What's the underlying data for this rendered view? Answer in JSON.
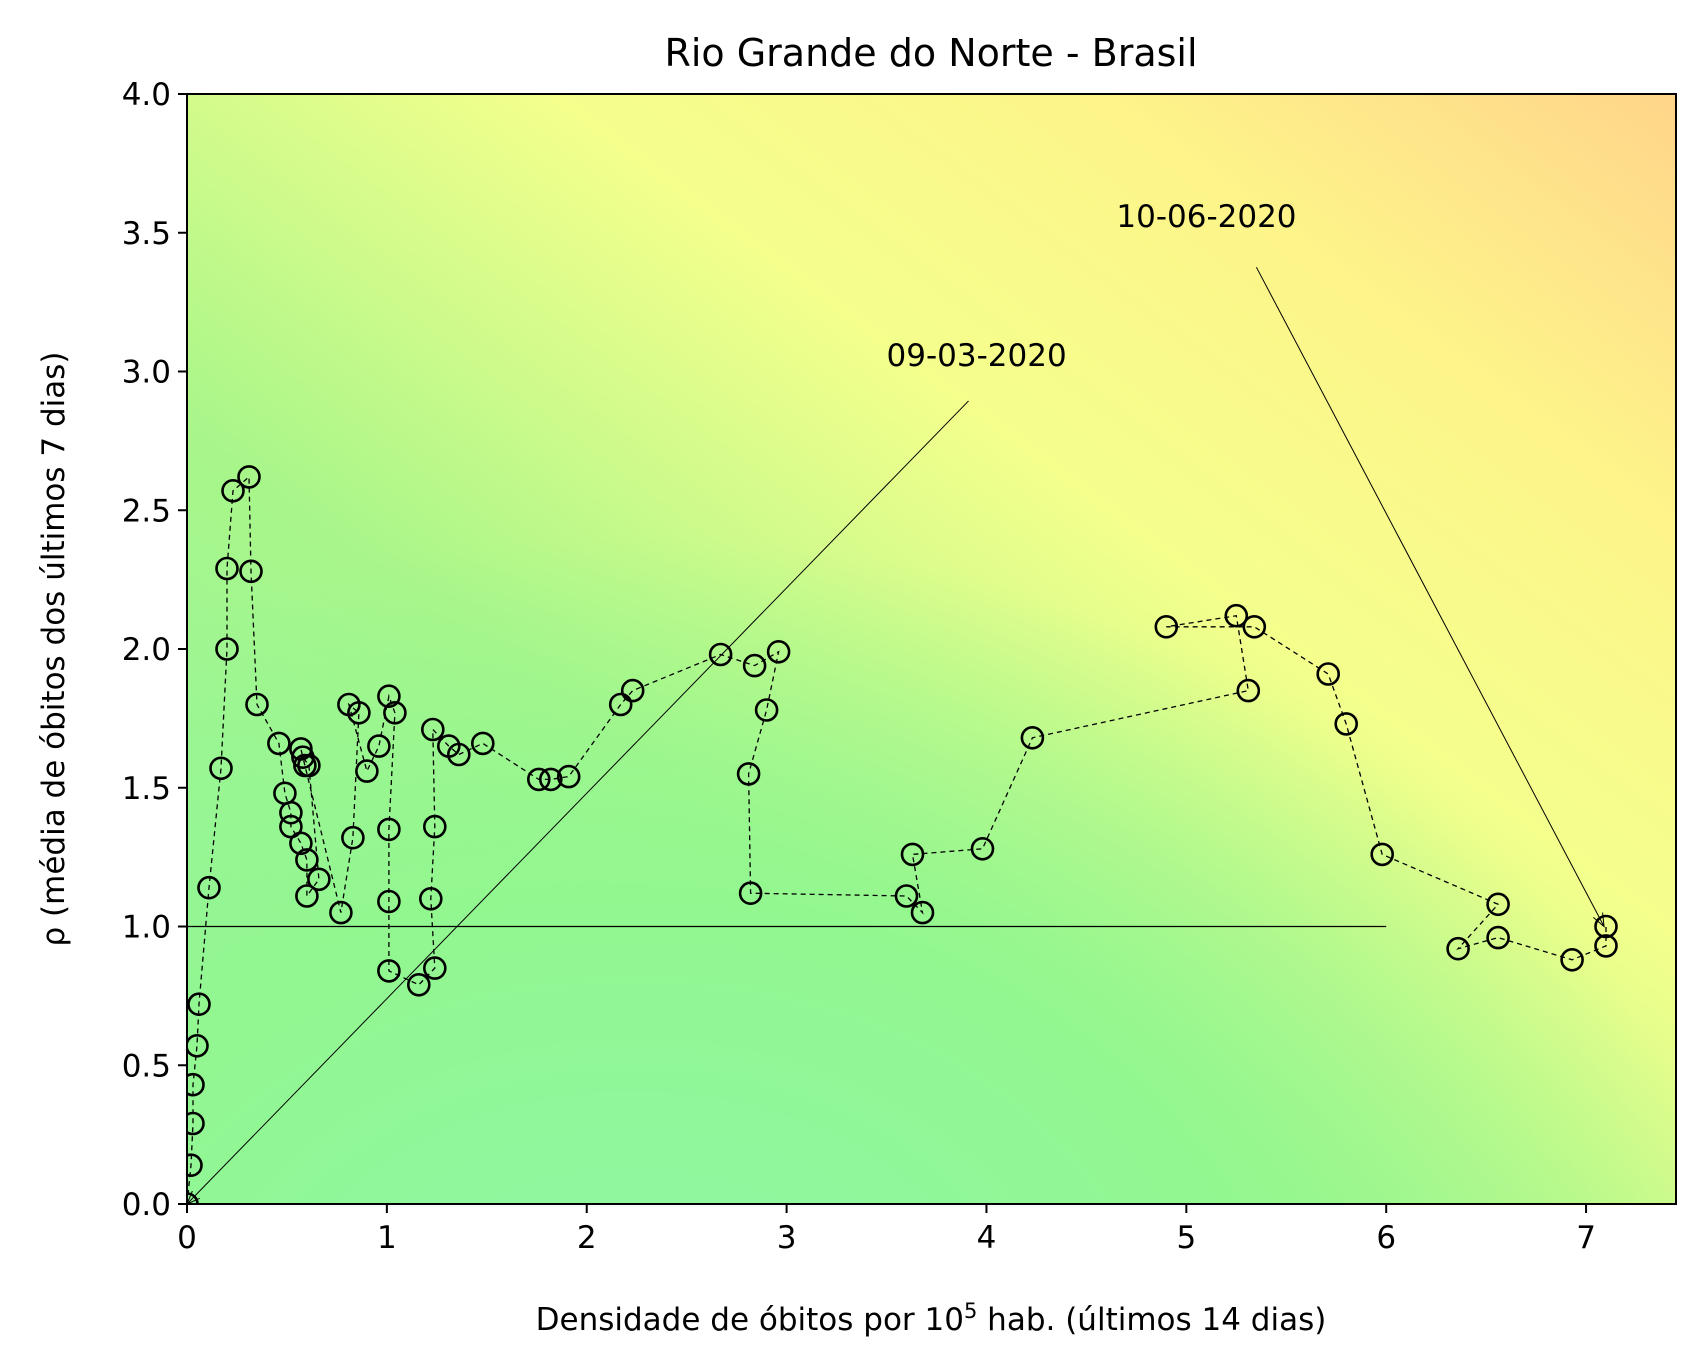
{
  "chart_data": {
    "type": "scatter",
    "title": "Rio Grande do Norte - Brasil",
    "xlabel_main": "Densidade de óbitos por 10",
    "xlabel_sup": "5",
    "xlabel_rest": " hab. (últimos 14 dias)",
    "ylabel": "ρ (média de óbitos dos últimos 7 dias)",
    "xlim": [
      0,
      7.45
    ],
    "ylim": [
      0,
      4.0
    ],
    "x_ticks": [
      0,
      1,
      2,
      3,
      4,
      5,
      6,
      7
    ],
    "x_tick_labels": [
      "0",
      "1",
      "2",
      "3",
      "4",
      "5",
      "6",
      "7"
    ],
    "y_ticks": [
      0,
      0.5,
      1.0,
      1.5,
      2.0,
      2.5,
      3.0,
      3.5,
      4.0
    ],
    "y_tick_labels": [
      "0.0",
      "0.5",
      "1.0",
      "1.5",
      "2.0",
      "2.5",
      "3.0",
      "3.5",
      "4.0"
    ],
    "reference_line": {
      "y": 1.0,
      "x_range": [
        0,
        6.0
      ]
    },
    "annotations": [
      {
        "text": "09-03-2020",
        "text_at": [
          3.5,
          3.02
        ],
        "target": [
          0.0,
          0.0
        ]
      },
      {
        "text": "10-06-2020",
        "text_at": [
          4.65,
          3.52
        ],
        "target": [
          7.09,
          1.0
        ]
      }
    ],
    "series": [
      {
        "marker": "circle-open",
        "line": "dashed",
        "x": [
          0.0,
          0.02,
          0.03,
          0.03,
          0.05,
          0.06,
          0.11,
          0.17,
          0.2,
          0.2,
          0.23,
          0.31,
          0.32,
          0.35,
          0.46,
          0.49,
          0.52,
          0.52,
          0.57,
          0.6,
          0.6,
          0.66,
          0.61,
          0.58,
          0.57,
          0.59,
          0.77,
          0.83,
          0.86,
          0.81,
          0.9,
          0.96,
          1.01,
          1.04,
          1.01,
          1.01,
          1.01,
          1.16,
          1.24,
          1.22,
          1.24,
          1.23,
          1.31,
          1.36,
          1.48,
          1.76,
          1.82,
          1.91,
          2.17,
          2.23,
          2.67,
          2.84,
          2.96,
          2.9,
          2.81,
          2.82,
          3.6,
          3.68,
          3.63,
          3.98,
          4.23,
          5.31,
          5.25,
          4.9,
          5.34,
          5.71,
          5.8,
          5.98,
          6.56,
          6.36,
          6.56,
          6.93,
          7.1,
          7.1
        ]
      }
    ],
    "y_series": [
      0.0,
      0.14,
      0.29,
      0.43,
      0.57,
      0.72,
      1.14,
      1.57,
      2.0,
      2.29,
      2.57,
      2.62,
      2.28,
      1.8,
      1.66,
      1.48,
      1.41,
      1.36,
      1.3,
      1.24,
      1.11,
      1.17,
      1.58,
      1.61,
      1.64,
      1.58,
      1.05,
      1.32,
      1.77,
      1.8,
      1.56,
      1.65,
      1.83,
      1.77,
      1.35,
      1.09,
      0.84,
      0.79,
      0.85,
      1.1,
      1.36,
      1.71,
      1.65,
      1.62,
      1.66,
      1.53,
      1.53,
      1.54,
      1.8,
      1.85,
      1.98,
      1.94,
      1.99,
      1.78,
      1.55,
      1.12,
      1.11,
      1.05,
      1.26,
      1.28,
      1.68,
      1.85,
      2.12,
      2.08,
      2.08,
      1.91,
      1.73,
      1.26,
      1.08,
      0.92,
      0.96,
      0.88,
      0.93,
      1.0
    ]
  }
}
